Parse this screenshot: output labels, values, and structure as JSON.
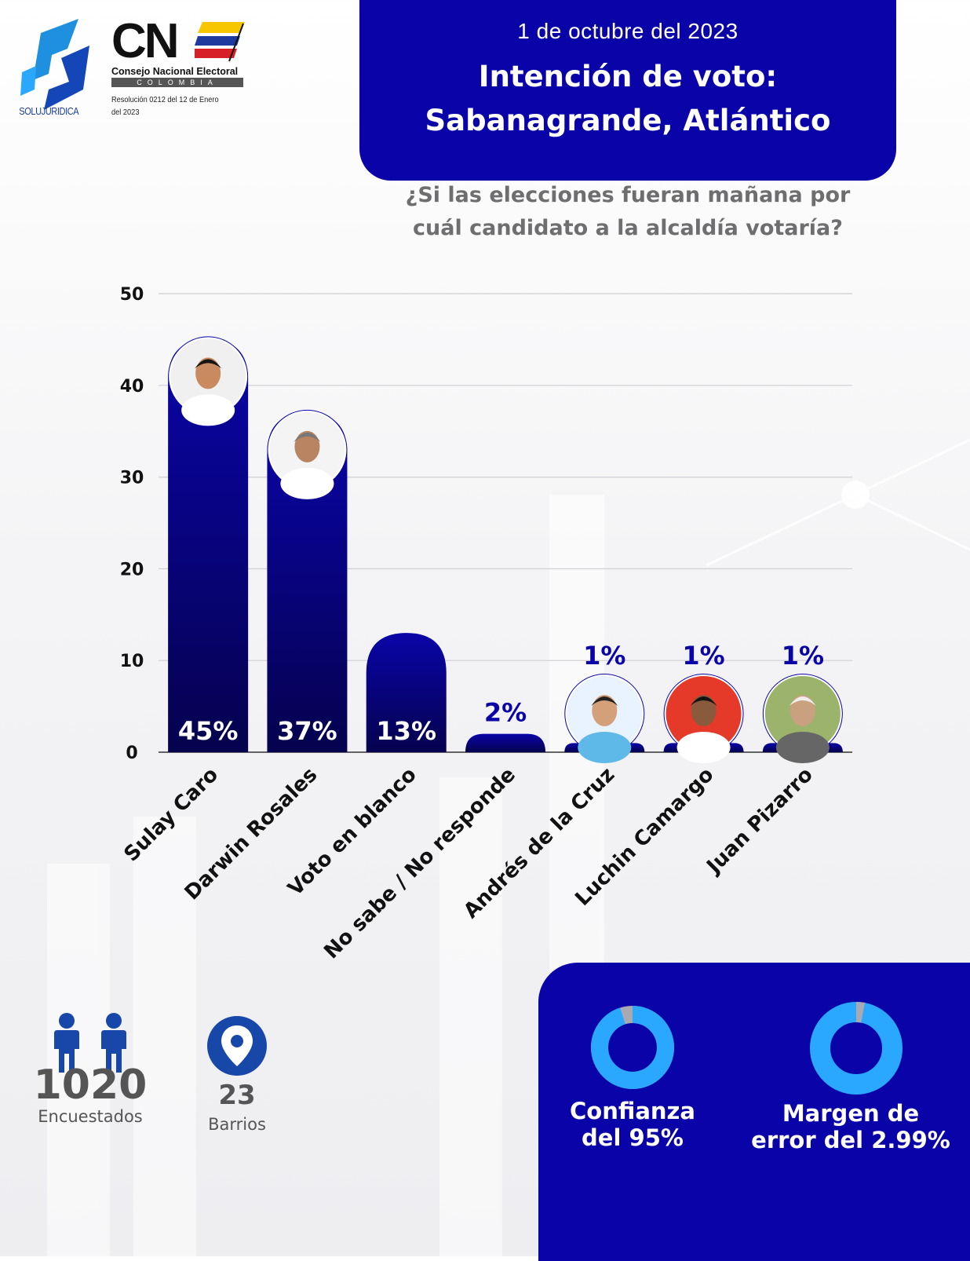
{
  "logos": {
    "solujuridica": "SOLUJURIDICA",
    "cne_letters": "CN",
    "cne_name": "Consejo Nacional Electoral",
    "cne_country": "COLOMBIA",
    "cne_resolution": "Resolución 0212 del 12 de Enero del 2023"
  },
  "header": {
    "date": "1 de octubre del 2023",
    "title_line1": "Intención de voto:",
    "title_line2": "Sabanagrande, Atlántico"
  },
  "question": {
    "line1": "¿Si las elecciones fueran mañana por",
    "line2": "cuál candidato a la alcaldía votaría?"
  },
  "chart_data": {
    "type": "bar",
    "categories": [
      "Sulay Caro",
      "Darwin Rosales",
      "Voto en blanco",
      "No sabe / No responde",
      "Andrés de la Cruz",
      "Luchin Camargo",
      "Juan Pizarro"
    ],
    "values": [
      45,
      37,
      13,
      2,
      1,
      1,
      1
    ],
    "value_labels": [
      "45%",
      "37%",
      "13%",
      "2%",
      "1%",
      "1%",
      "1%"
    ],
    "ylim": [
      0,
      50
    ],
    "yticks": [
      0,
      10,
      20,
      30,
      40,
      50
    ],
    "grid": true,
    "bar_color": "#0a04a8"
  },
  "stats": {
    "respondents_value": "1020",
    "respondents_label": "Encuestados",
    "barrios_value": "23",
    "barrios_label": "Barrios"
  },
  "metrics": {
    "confidence_label_line1": "Confianza",
    "confidence_label_line2": "del 95%",
    "confidence_fraction": 0.95,
    "error_label_line1": "Margen de",
    "error_label_line2": "error del 2.99%",
    "error_fraction": 0.0299,
    "ring_color": "#2aa7ff",
    "ring_remainder_color": "#a9a9b3"
  },
  "colors": {
    "primary": "#0a04a8",
    "text_gray": "#6e6e70"
  }
}
